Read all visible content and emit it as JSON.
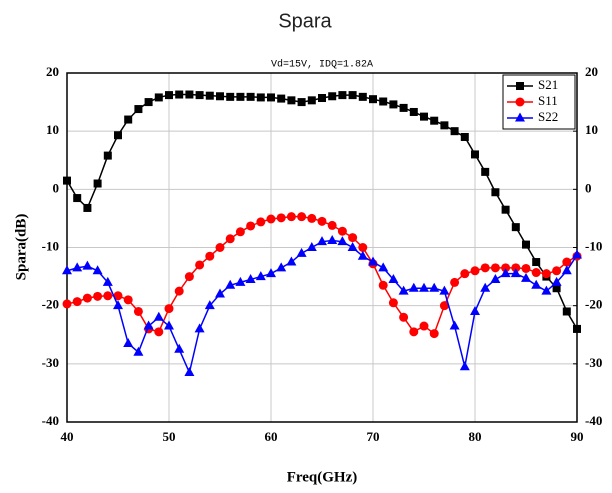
{
  "chart_data": {
    "type": "line",
    "title": "Spara",
    "subtitle": "Vd=15V,  IDQ=1.82A",
    "x_label": "Freq(GHz)",
    "y_label": "Spara(dB)",
    "x": [
      40,
      41,
      42,
      43,
      44,
      45,
      46,
      47,
      48,
      49,
      50,
      51,
      52,
      53,
      54,
      55,
      56,
      57,
      58,
      59,
      60,
      61,
      62,
      63,
      64,
      65,
      66,
      67,
      68,
      69,
      70,
      71,
      72,
      73,
      74,
      75,
      76,
      77,
      78,
      79,
      80,
      81,
      82,
      83,
      84,
      85,
      86,
      87,
      88,
      89,
      90
    ],
    "series": [
      {
        "name": "S21",
        "color": "#000000",
        "marker": "square",
        "values": [
          1.5,
          -1.5,
          -3.2,
          1,
          5.8,
          9.3,
          12,
          13.8,
          15,
          15.8,
          16.2,
          16.3,
          16.3,
          16.2,
          16.1,
          16,
          15.9,
          15.9,
          15.9,
          15.8,
          15.8,
          15.6,
          15.3,
          15,
          15.3,
          15.7,
          16,
          16.2,
          16.2,
          15.9,
          15.5,
          15.1,
          14.6,
          14,
          13.3,
          12.5,
          11.8,
          11,
          10,
          9,
          6,
          3,
          -0.5,
          -3.5,
          -6.5,
          -9.5,
          -12.5,
          -15,
          -17,
          -21,
          -24
        ]
      },
      {
        "name": "S11",
        "color": "#ff0000",
        "marker": "circle",
        "values": [
          -19.7,
          -19.3,
          -18.7,
          -18.4,
          -18.3,
          -18.3,
          -19,
          -21,
          -24,
          -24.5,
          -20.5,
          -17.5,
          -15,
          -13,
          -11.5,
          -10,
          -8.5,
          -7.3,
          -6.3,
          -5.6,
          -5.1,
          -4.9,
          -4.7,
          -4.7,
          -5,
          -5.5,
          -6.2,
          -7.2,
          -8.3,
          -10,
          -12.8,
          -16.5,
          -19.5,
          -22,
          -24.5,
          -23.5,
          -24.8,
          -20,
          -16,
          -14.5,
          -14,
          -13.5,
          -13.5,
          -13.5,
          -13.5,
          -13.6,
          -14.3,
          -14.5,
          -14,
          -12.5,
          -11.5
        ]
      },
      {
        "name": "S22",
        "color": "#0000ff",
        "marker": "triangle",
        "values": [
          -14,
          -13.5,
          -13.2,
          -14,
          -16,
          -20,
          -26.5,
          -28,
          -23.5,
          -22,
          -23.5,
          -27.5,
          -31.5,
          -24,
          -20,
          -18,
          -16.5,
          -16,
          -15.5,
          -15,
          -14.5,
          -13.5,
          -12.5,
          -11,
          -10,
          -9,
          -8.8,
          -9,
          -10,
          -11.5,
          -12.5,
          -13.5,
          -15.5,
          -17.5,
          -17,
          -17,
          -17,
          -17.5,
          -23.5,
          -30.5,
          -21,
          -17,
          -15.5,
          -14.5,
          -14.5,
          -15.3,
          -16.5,
          -17.5,
          -16,
          -14,
          -11.3
        ]
      }
    ],
    "xlim": [
      40,
      90
    ],
    "xticks": [
      40,
      50,
      60,
      70,
      80,
      90
    ],
    "ylim": [
      -40,
      20
    ],
    "yticks": [
      -40,
      -30,
      -20,
      -10,
      0,
      10,
      20
    ],
    "y2lim": [
      -40,
      20
    ],
    "y2ticks": [
      -40,
      -30,
      -20,
      -10,
      0,
      10,
      20
    ],
    "grid": true,
    "legend": "upper right"
  }
}
